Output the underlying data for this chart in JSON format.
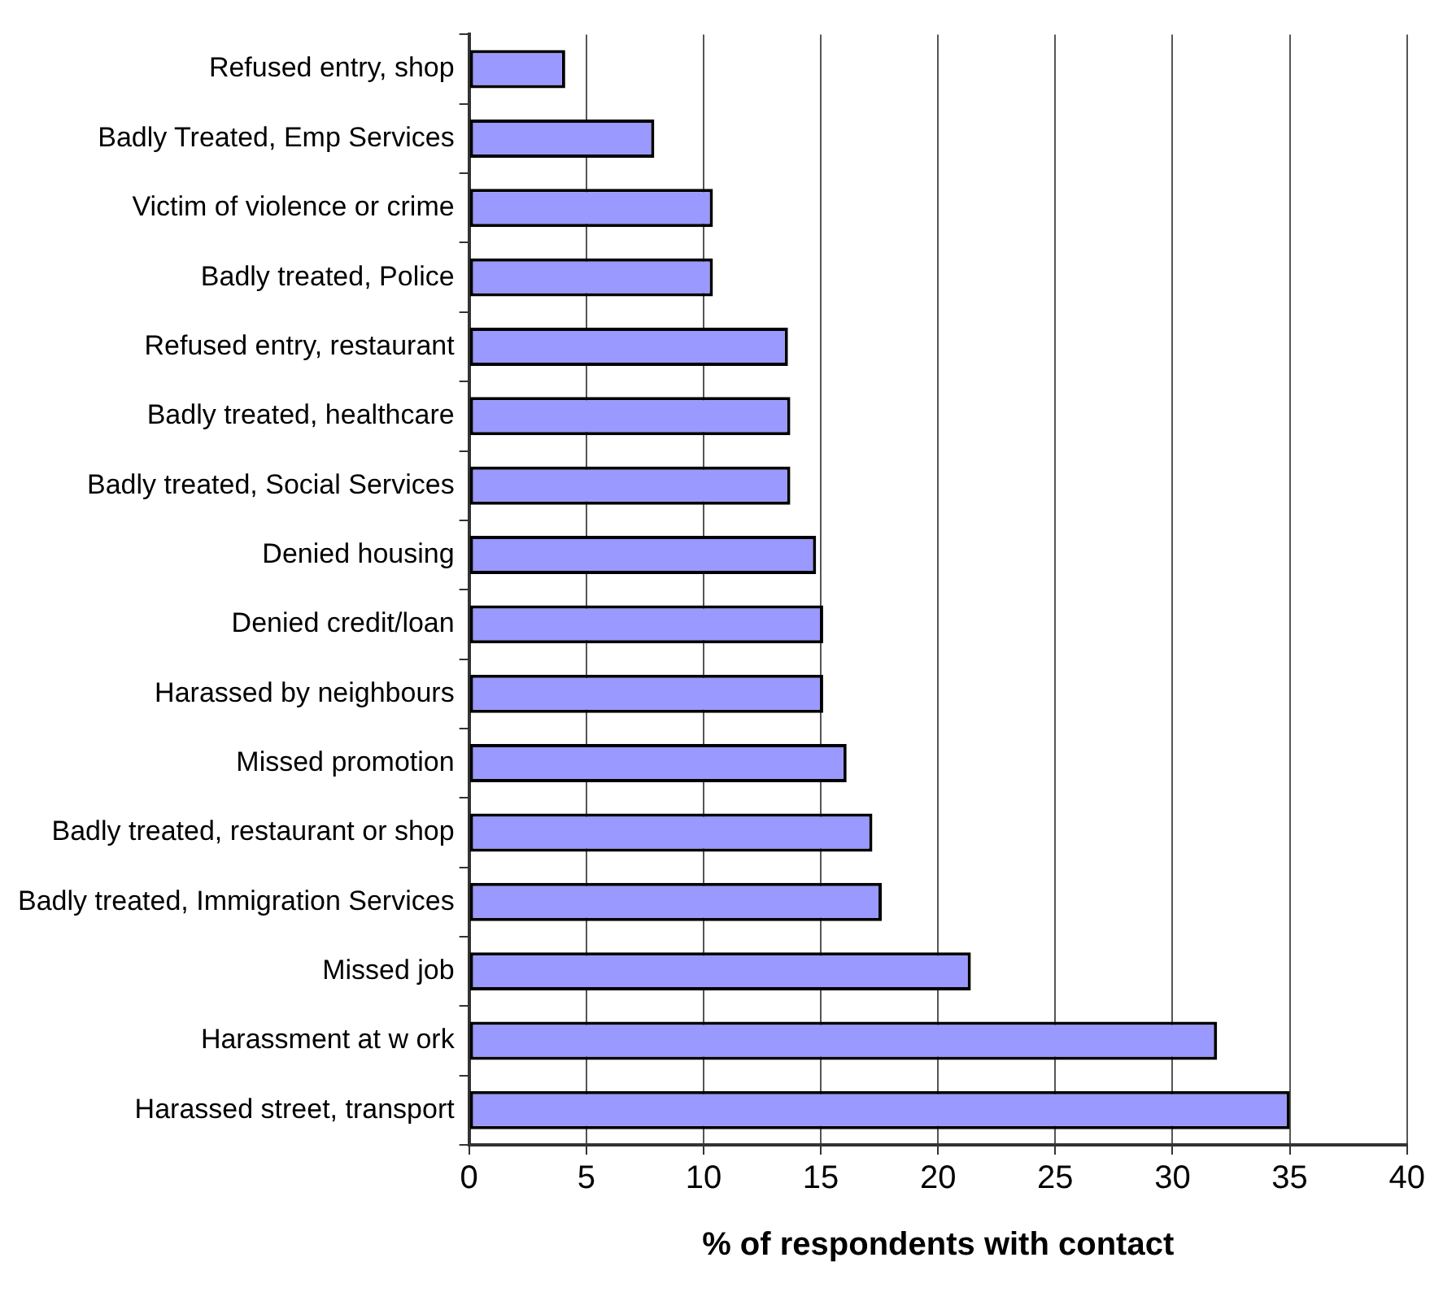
{
  "chart_data": {
    "type": "bar",
    "orientation": "horizontal",
    "xlabel": "% of respondents with contact",
    "categories": [
      "Refused entry, shop",
      "Badly Treated, Emp Services",
      "Victim of violence or crime",
      "Badly treated, Police",
      "Refused entry, restaurant",
      "Badly treated, healthcare",
      "Badly treated, Social Services",
      "Denied housing",
      "Denied credit/loan",
      "Harassed by neighbours",
      "Missed promotion",
      "Badly treated, restaurant or shop",
      "Badly treated, Immigration Services",
      "Missed job",
      "Harassment at w ork",
      "Harassed street, transport"
    ],
    "values": [
      4.1,
      7.9,
      10.4,
      10.4,
      13.6,
      13.7,
      13.7,
      14.8,
      15.1,
      15.1,
      16.1,
      17.2,
      17.6,
      21.4,
      31.9,
      35
    ],
    "color": "#9999ff",
    "xlim": [
      0,
      40
    ],
    "xticks": [
      0,
      5,
      10,
      15,
      20,
      25,
      30,
      35,
      40
    ],
    "grid": "x",
    "legend": false
  }
}
